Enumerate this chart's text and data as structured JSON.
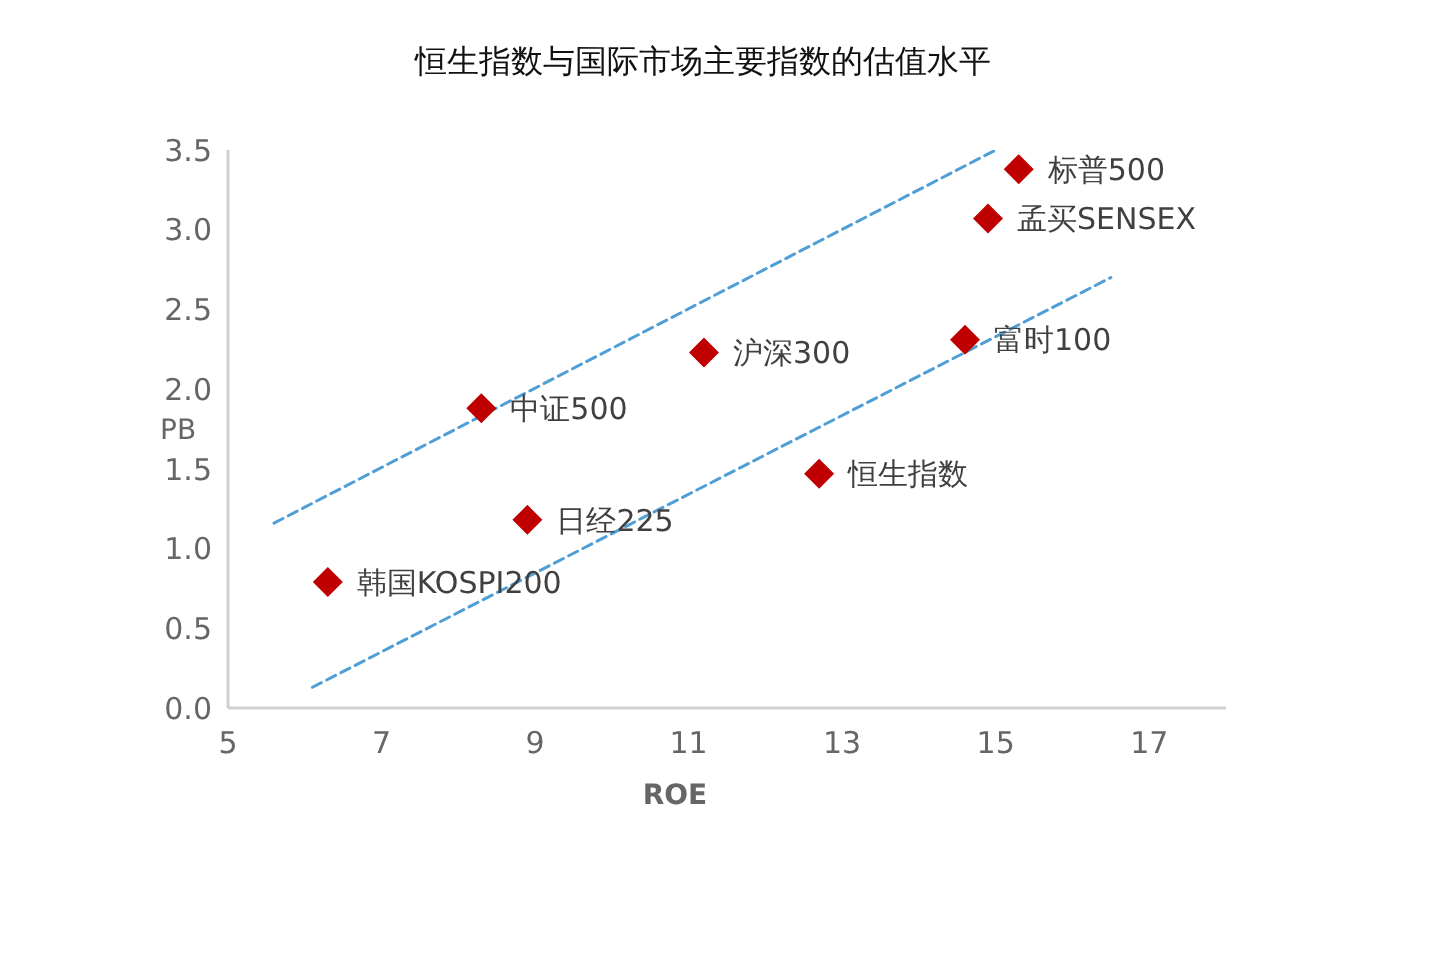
{
  "chart_data": {
    "type": "scatter",
    "title": "恒生指数与国际市场主要指数的估值水平",
    "xlabel": "ROE",
    "ylabel": "PB",
    "xlim": [
      5,
      18
    ],
    "xticks": [
      5,
      7,
      9,
      11,
      13,
      15,
      17
    ],
    "ylim": [
      0,
      3.5
    ],
    "yticks": [
      {
        "value": 0,
        "label": "0.0"
      },
      0.5,
      {
        "value": 1,
        "label": "1.0"
      },
      1.5,
      {
        "value": 2,
        "label": "2.0"
      },
      2.5,
      {
        "value": 3,
        "label": "3.0"
      },
      3.5
    ],
    "marker": "diamond",
    "series": [
      {
        "name": "韩国KOSPI200",
        "color": "#c00000",
        "x": [
          6.3
        ],
        "values": [
          0.79
        ]
      },
      {
        "name": "中证500",
        "color": "#c00000",
        "x": [
          8.3
        ],
        "values": [
          1.88
        ]
      },
      {
        "name": "日经225",
        "color": "#c00000",
        "x": [
          8.9
        ],
        "values": [
          1.18
        ]
      },
      {
        "name": "沪深300",
        "color": "#c00000",
        "x": [
          11.2
        ],
        "values": [
          2.23
        ]
      },
      {
        "name": "恒生指数",
        "color": "#c00000",
        "x": [
          12.7
        ],
        "values": [
          1.47
        ]
      },
      {
        "name": "富时100",
        "color": "#c00000",
        "x": [
          14.6
        ],
        "values": [
          2.31
        ]
      },
      {
        "name": "孟买SENSEX",
        "color": "#c00000",
        "x": [
          14.9
        ],
        "values": [
          3.07
        ]
      },
      {
        "name": "标普500",
        "color": "#c00000",
        "x": [
          15.3
        ],
        "values": [
          3.38
        ]
      },
      {
        "type": "line",
        "color": "#4f9fd6",
        "line_style": "dashed",
        "marker": "none",
        "x": [
          5.6,
          15.0
        ],
        "values": [
          1.16,
          3.5
        ]
      },
      {
        "type": "line",
        "color": "#4f9fd6",
        "line_style": "dashed",
        "marker": "none",
        "x": [
          6.1,
          16.5
        ],
        "values": [
          0.13,
          2.7
        ]
      }
    ]
  }
}
